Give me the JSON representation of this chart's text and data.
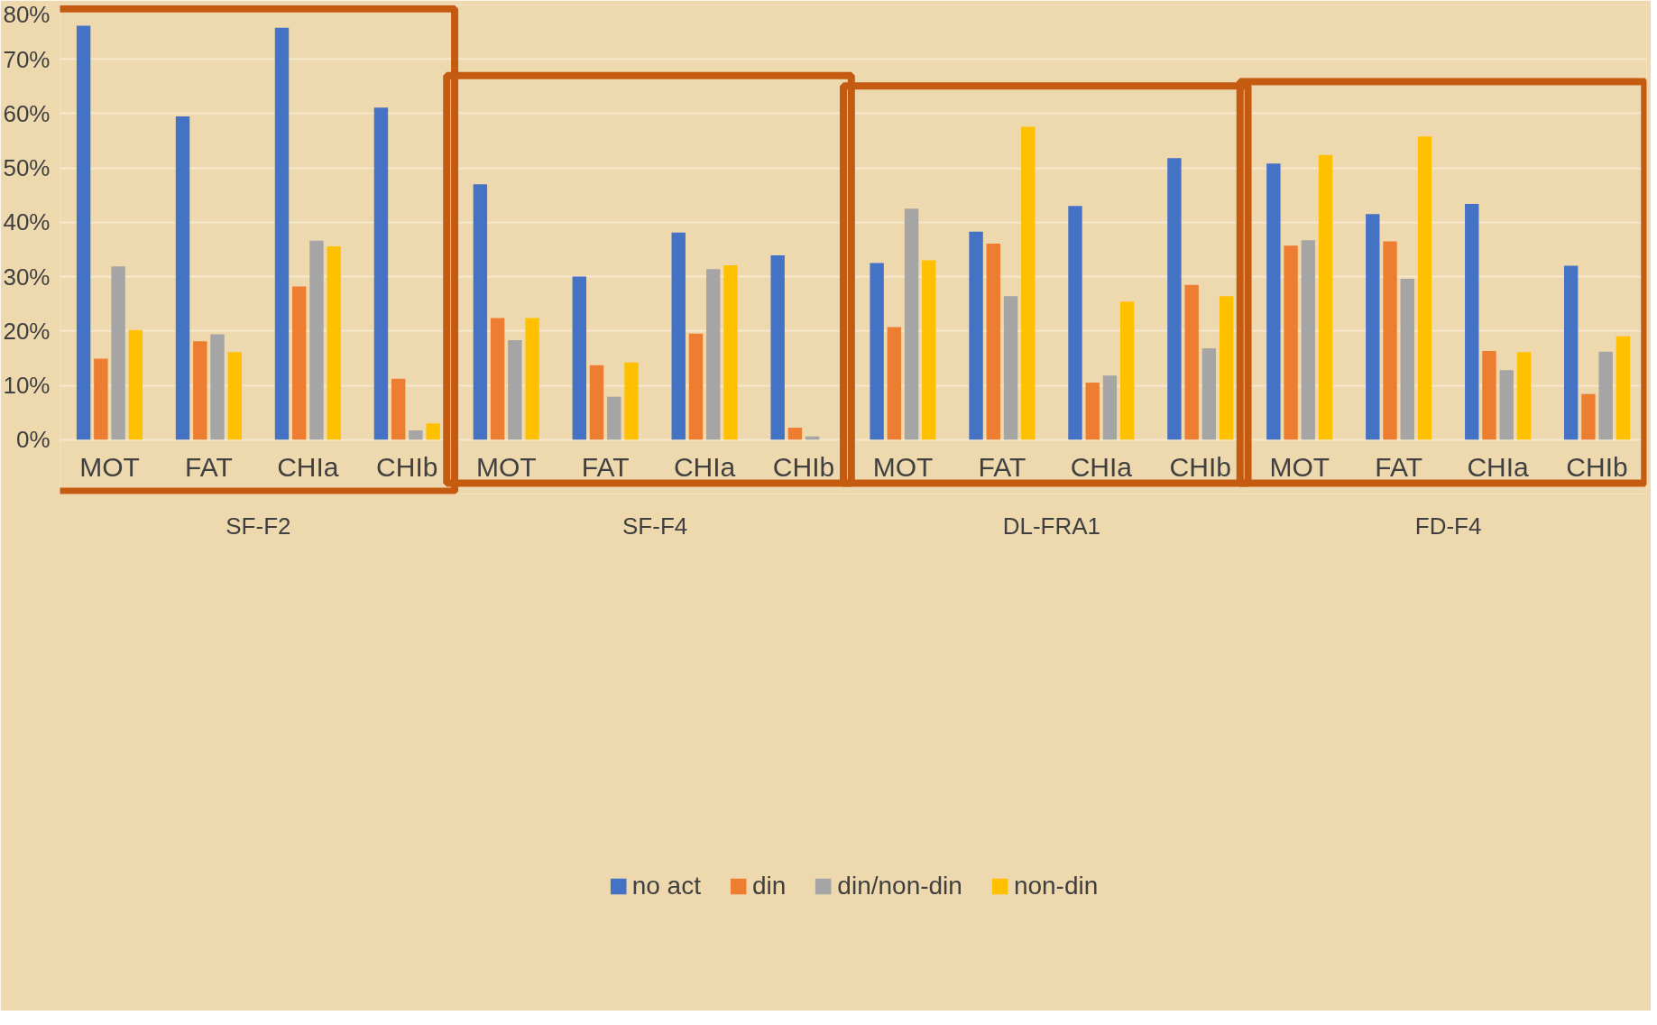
{
  "chart_data": {
    "type": "bar",
    "categories": [
      "MOT",
      "FAT",
      "CHIa",
      "CHIb",
      "MOT",
      "FAT",
      "CHIa",
      "CHIb",
      "MOT",
      "FAT",
      "CHIa",
      "CHIb",
      "MOT",
      "FAT",
      "CHIa",
      "CHIb"
    ],
    "series": [
      {
        "name": "no act",
        "color": "#4472c4",
        "values": [
          76.2,
          59.5,
          75.8,
          61.1,
          47.0,
          30.0,
          38.1,
          33.9,
          32.5,
          38.3,
          43.0,
          51.8,
          50.8,
          41.5,
          43.4,
          32.0
        ]
      },
      {
        "name": "din",
        "color": "#ed7d31",
        "values": [
          14.9,
          18.1,
          28.2,
          11.2,
          22.4,
          13.7,
          19.5,
          2.2,
          20.7,
          36.1,
          10.5,
          28.5,
          35.7,
          36.5,
          16.3,
          8.4
        ]
      },
      {
        "name": "din/non-din",
        "color": "#a5a5a5",
        "values": [
          31.9,
          19.4,
          36.6,
          1.7,
          18.3,
          7.9,
          31.4,
          0.6,
          42.5,
          26.4,
          11.8,
          16.8,
          36.7,
          29.6,
          12.8,
          16.2
        ]
      },
      {
        "name": "non-din",
        "color": "#ffc000",
        "values": [
          20.2,
          16.1,
          35.6,
          3.0,
          22.4,
          14.2,
          32.1,
          null,
          33.0,
          57.6,
          25.4,
          26.4,
          52.4,
          55.8,
          16.1,
          19.0
        ]
      }
    ],
    "annotations": [
      "SF-F2",
      "SF-F4",
      "DL-FRA1",
      "FD-F4"
    ],
    "ylim": [
      -10,
      80
    ],
    "yticks": [
      {
        "value": 0,
        "label": "0%"
      },
      {
        "value": 10,
        "label": "10%"
      },
      {
        "value": 20,
        "label": "20%"
      },
      {
        "value": 30,
        "label": "30%"
      },
      {
        "value": 40,
        "label": "40%"
      },
      {
        "value": 50,
        "label": "50%"
      },
      {
        "value": 60,
        "label": "60%"
      },
      {
        "value": 70,
        "label": "70%"
      },
      {
        "value": 80,
        "label": "80%"
      }
    ],
    "grid": "y",
    "legend": "bottom"
  }
}
